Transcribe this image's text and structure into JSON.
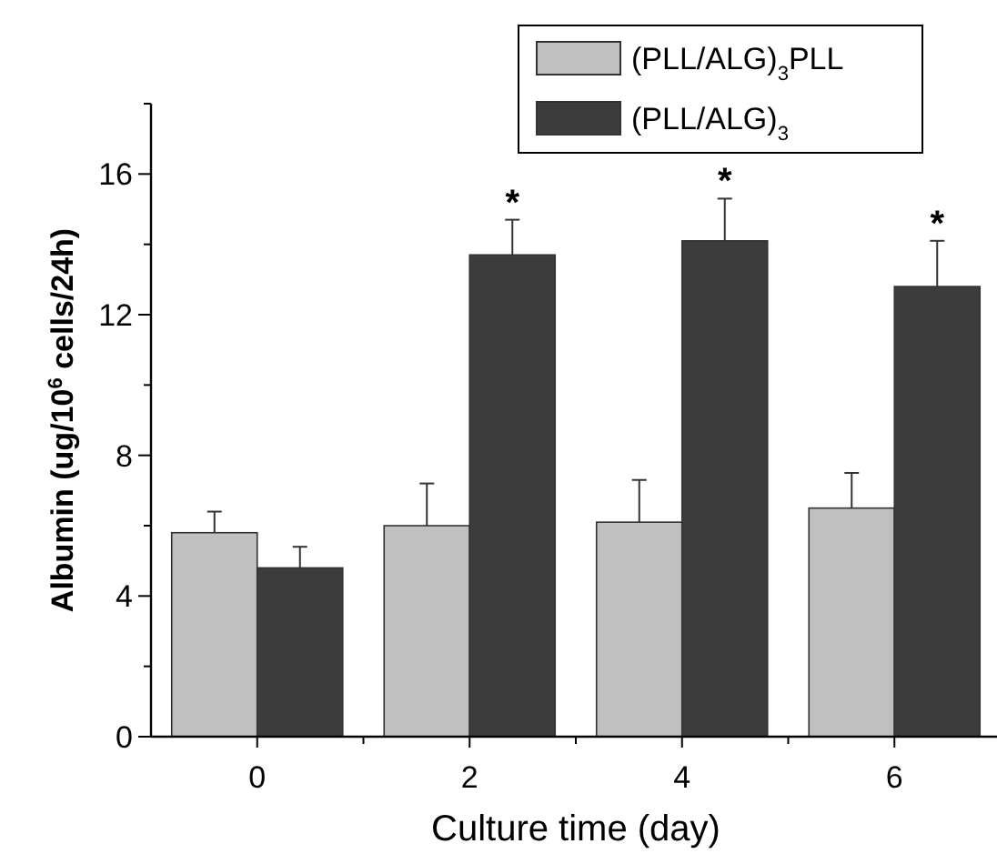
{
  "chart_data": {
    "type": "bar",
    "xlabel": "Culture time (day)",
    "ylabel": "Albumin (ug/10$^{6}$ cells/24h)",
    "categories": [
      "0",
      "2",
      "4",
      "6"
    ],
    "series": [
      {
        "name": "(PLL/ALG)$_{3}$PLL",
        "color": "#c0c0c0",
        "values": [
          5.8,
          6.0,
          6.1,
          6.5
        ],
        "errors": [
          [
            5.8,
            6.4
          ],
          [
            6.0,
            7.2
          ],
          [
            6.1,
            7.3
          ],
          [
            6.5,
            7.5
          ]
        ]
      },
      {
        "name": "(PLL/ALG)$_{3}$",
        "color": "#3c3c3c",
        "values": [
          4.8,
          13.7,
          14.1,
          12.8
        ],
        "errors": [
          [
            4.8,
            5.4
          ],
          [
            13.7,
            14.7
          ],
          [
            14.1,
            15.3
          ],
          [
            12.8,
            14.1
          ]
        ]
      }
    ],
    "ylim": [
      0,
      18
    ],
    "yticks": [
      0,
      {
        "value": 2,
        "label": null
      },
      4,
      {
        "value": 6,
        "label": null
      },
      8,
      {
        "value": 10,
        "label": null
      },
      12,
      {
        "value": 14,
        "label": null
      },
      16,
      {
        "value": 18,
        "label": null
      }
    ],
    "annotations": [
      "*",
      "*",
      "*"
    ],
    "legend": "top right",
    "grid": false
  }
}
